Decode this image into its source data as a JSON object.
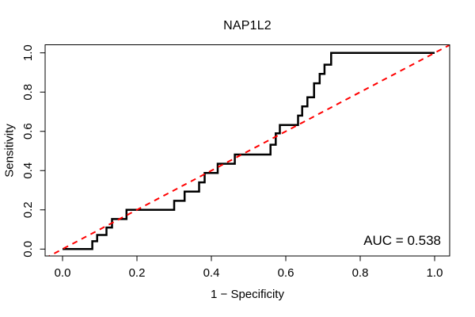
{
  "figure": {
    "background": "#ffffff",
    "frame_color": "#000000"
  },
  "chart_data": {
    "type": "line",
    "title": "NAP1L2",
    "xlabel": "1 − Specificity",
    "ylabel": "Sensitivity",
    "xlim": [
      0,
      1
    ],
    "ylim": [
      0,
      1
    ],
    "grid": false,
    "legend": "none",
    "xticks": {
      "values": [
        0,
        0.2,
        0.4,
        0.6,
        0.8,
        1.0
      ],
      "labels": [
        "0.0",
        "0.2",
        "0.4",
        "0.6",
        "0.8",
        "1.0"
      ]
    },
    "yticks": {
      "values": [
        0,
        0.2,
        0.4,
        0.6,
        0.8,
        1.0
      ],
      "labels": [
        "0.0",
        "0.2",
        "0.4",
        "0.6",
        "0.8",
        "1.0"
      ]
    },
    "annotation": {
      "auc_label": "AUC = 0.538",
      "auc_value": 0.538
    },
    "series": [
      {
        "name": "roc-step-curve",
        "style": "step",
        "color": "#000000",
        "line_width": 2.5,
        "points": [
          [
            0.0,
            0.0
          ],
          [
            0.08,
            0.0
          ],
          [
            0.08,
            0.04
          ],
          [
            0.093,
            0.04
          ],
          [
            0.093,
            0.072
          ],
          [
            0.118,
            0.072
          ],
          [
            0.118,
            0.11
          ],
          [
            0.133,
            0.11
          ],
          [
            0.133,
            0.153
          ],
          [
            0.172,
            0.153
          ],
          [
            0.172,
            0.2
          ],
          [
            0.3,
            0.2
          ],
          [
            0.3,
            0.246
          ],
          [
            0.328,
            0.246
          ],
          [
            0.328,
            0.293
          ],
          [
            0.367,
            0.293
          ],
          [
            0.367,
            0.34
          ],
          [
            0.382,
            0.34
          ],
          [
            0.382,
            0.388
          ],
          [
            0.417,
            0.388
          ],
          [
            0.417,
            0.435
          ],
          [
            0.463,
            0.435
          ],
          [
            0.463,
            0.482
          ],
          [
            0.559,
            0.482
          ],
          [
            0.559,
            0.532
          ],
          [
            0.573,
            0.532
          ],
          [
            0.573,
            0.59
          ],
          [
            0.584,
            0.59
          ],
          [
            0.584,
            0.632
          ],
          [
            0.633,
            0.632
          ],
          [
            0.633,
            0.68
          ],
          [
            0.644,
            0.68
          ],
          [
            0.644,
            0.727
          ],
          [
            0.658,
            0.727
          ],
          [
            0.658,
            0.774
          ],
          [
            0.676,
            0.774
          ],
          [
            0.676,
            0.845
          ],
          [
            0.691,
            0.845
          ],
          [
            0.691,
            0.893
          ],
          [
            0.704,
            0.893
          ],
          [
            0.704,
            0.94
          ],
          [
            0.722,
            0.94
          ],
          [
            0.722,
            1.0
          ],
          [
            1.0,
            1.0
          ]
        ]
      },
      {
        "name": "chance-diagonal",
        "style": "dashed",
        "color": "#FF0000",
        "line_width": 2,
        "dash": "7,6",
        "points": [
          [
            -0.047,
            -0.047
          ],
          [
            1.047,
            1.047
          ]
        ]
      }
    ]
  }
}
